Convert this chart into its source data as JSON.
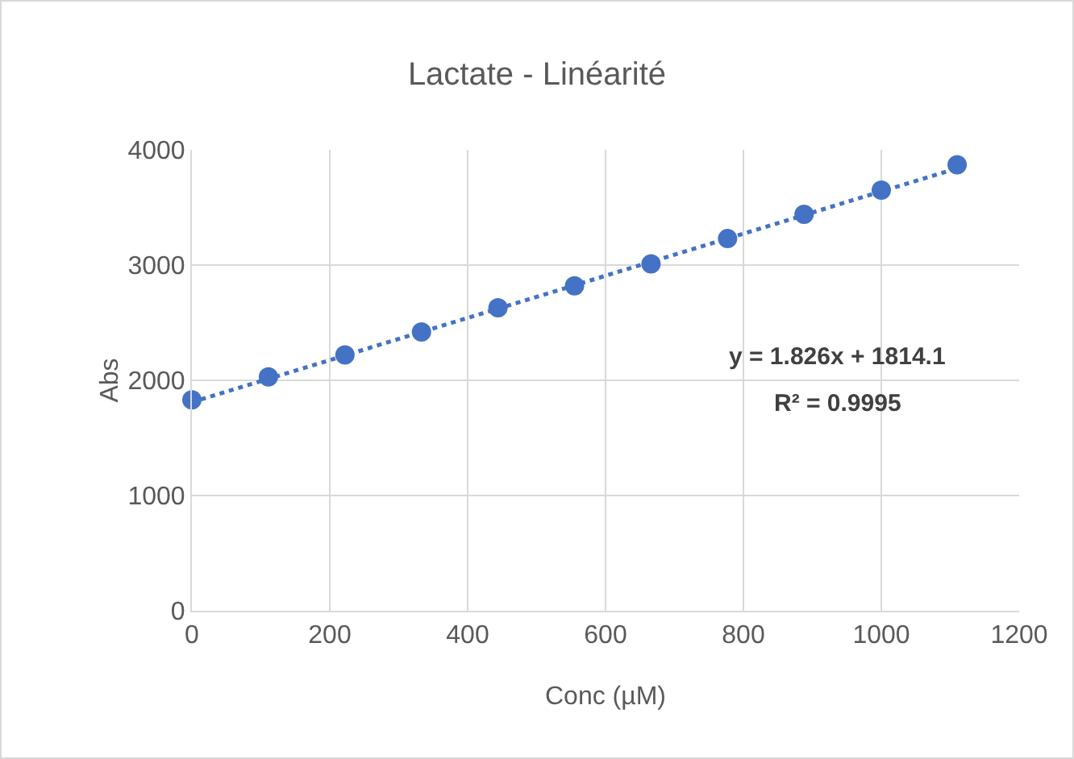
{
  "chart_data": {
    "type": "scatter",
    "title": "Lactate - Linéarité",
    "xlabel": "Conc (µM)",
    "ylabel": "Abs",
    "x": [
      0,
      111,
      222,
      333,
      444,
      555,
      666,
      777,
      888,
      1000,
      1110
    ],
    "series": [
      {
        "type": "scatter",
        "color": "#4472c4",
        "marker": "circle",
        "values": [
          1830,
          2030,
          2220,
          2420,
          2630,
          2820,
          3010,
          3230,
          3440,
          3650,
          3870
        ]
      },
      {
        "type": "line",
        "color": "#4472c4",
        "line_style": "dotted",
        "marker": "none",
        "x": [
          0,
          1110
        ],
        "values": [
          1810,
          3840
        ]
      }
    ],
    "xlim": [
      0,
      1200
    ],
    "xticks": [
      0,
      200,
      400,
      600,
      800,
      1000,
      1200
    ],
    "ylim": [
      0,
      4000
    ],
    "yticks": [
      0,
      1000,
      2000,
      3000,
      4000
    ],
    "grid": true,
    "annotations": [
      "y = 1.826x + 1814.1",
      "R² = 0.9995"
    ]
  }
}
